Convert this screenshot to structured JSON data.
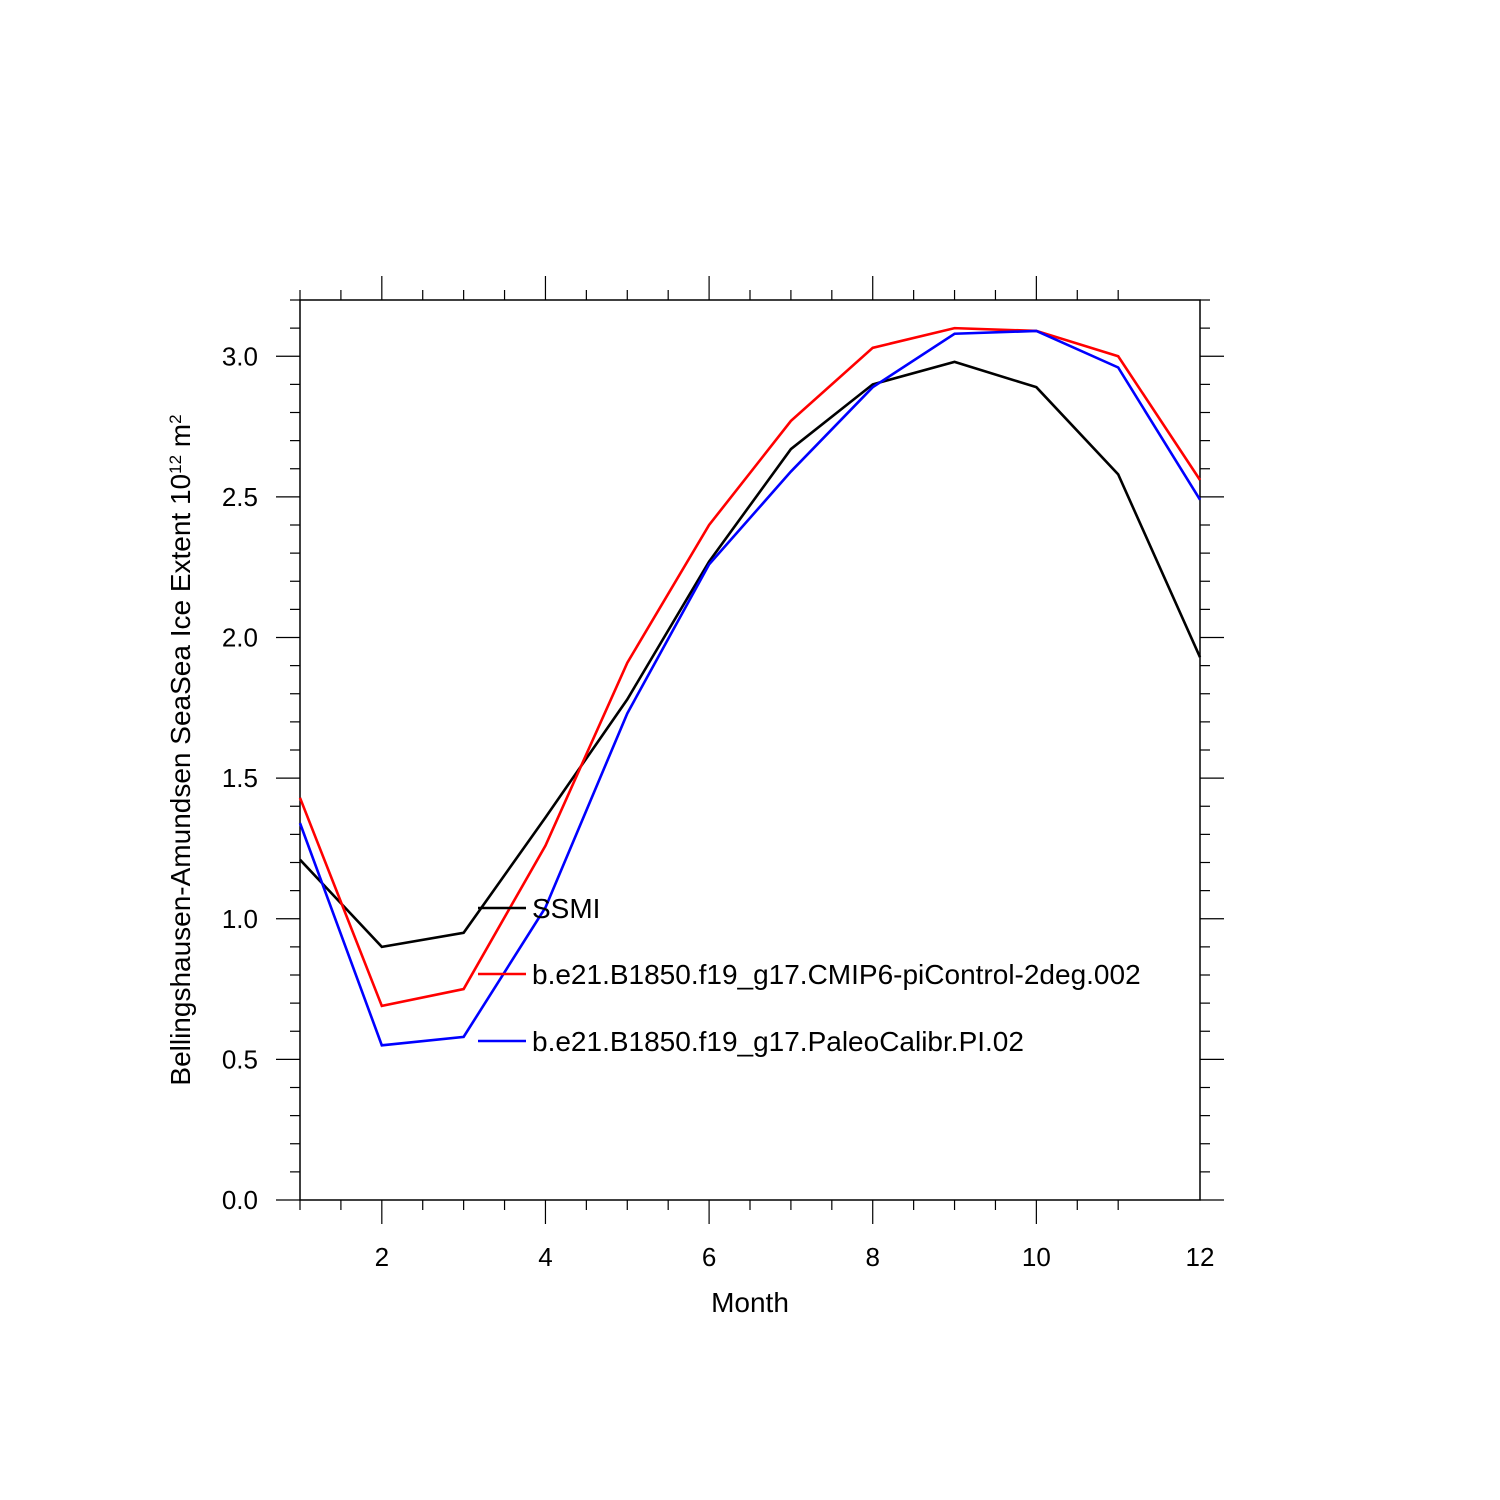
{
  "chart_data": {
    "type": "line",
    "xlabel": "Month",
    "ylabel_parts": [
      "Bellingshausen-Amundsen SeaSea Ice Extent 10",
      "12",
      " m",
      "2"
    ],
    "xlim": [
      1,
      12
    ],
    "ylim": [
      0,
      3.2
    ],
    "x_ticks": [
      2,
      4,
      6,
      8,
      10,
      12
    ],
    "y_ticks": [
      0.0,
      0.5,
      1.0,
      1.5,
      2.0,
      2.5,
      3.0
    ],
    "x": [
      1,
      2,
      3,
      4,
      5,
      6,
      7,
      8,
      9,
      10,
      11,
      12
    ],
    "series": [
      {
        "name": "SSMI",
        "color": "#000000",
        "values": [
          1.21,
          0.9,
          0.95,
          1.36,
          1.78,
          2.27,
          2.67,
          2.9,
          2.98,
          2.89,
          2.58,
          1.93
        ]
      },
      {
        "name": "b.e21.B1850.f19_g17.CMIP6-piControl-2deg.002",
        "color": "#ff0000",
        "values": [
          1.43,
          0.69,
          0.75,
          1.26,
          1.91,
          2.4,
          2.77,
          3.03,
          3.1,
          3.09,
          3.0,
          2.56
        ]
      },
      {
        "name": "b.e21.B1850.f19_g17.PaleoCalibr.PI.02",
        "color": "#0000ff",
        "values": [
          1.34,
          0.55,
          0.58,
          1.04,
          1.73,
          2.26,
          2.59,
          2.89,
          3.08,
          3.09,
          2.96,
          2.49
        ]
      }
    ],
    "legend_position": "inside-center"
  }
}
